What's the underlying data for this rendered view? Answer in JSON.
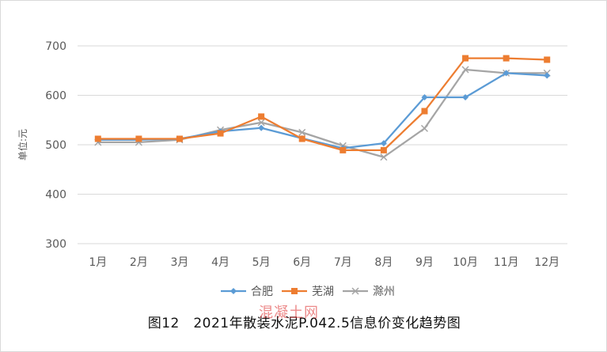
{
  "colors": {
    "hefei": "#5B9BD5",
    "wuhu": "#ED7D31",
    "chuzhou": "#A5A5A5",
    "gridline": "#d9d9d9",
    "watermark": "#dc2828"
  },
  "caption": "图12　2021年散装水泥P.042.5信息价变化趋势图",
  "watermark": "混凝土网",
  "chart_data": {
    "type": "line",
    "title": "",
    "xlabel": "",
    "ylabel": "单位:元",
    "categories": [
      "1月",
      "2月",
      "3月",
      "4月",
      "5月",
      "6月",
      "7月",
      "8月",
      "9月",
      "10月",
      "11月",
      "12月"
    ],
    "ylim": [
      300,
      700
    ],
    "yticks": [
      300,
      400,
      500,
      600,
      700
    ],
    "grid": true,
    "legend_position": "bottom",
    "series": [
      {
        "name": "合肥",
        "marker": "diamond",
        "values": [
          510,
          510,
          512,
          527,
          534,
          513,
          493,
          503,
          596,
          596,
          645,
          640
        ]
      },
      {
        "name": "芜湖",
        "marker": "square",
        "values": [
          512,
          512,
          512,
          523,
          557,
          512,
          489,
          489,
          568,
          675,
          675,
          672
        ]
      },
      {
        "name": "滁州",
        "marker": "x",
        "values": [
          505,
          505,
          510,
          530,
          545,
          525,
          498,
          475,
          533,
          652,
          645,
          645
        ]
      }
    ]
  }
}
